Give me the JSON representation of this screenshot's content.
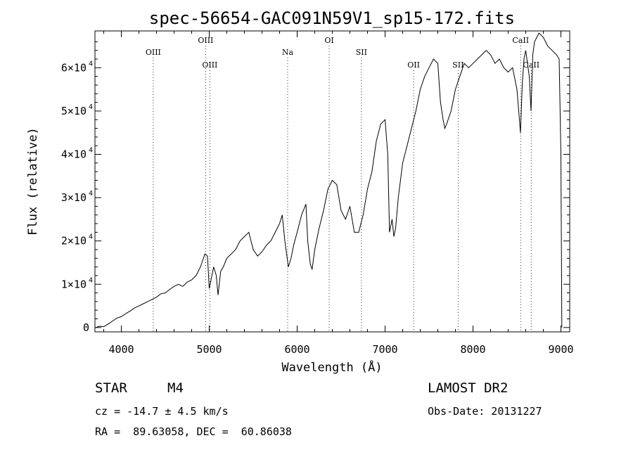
{
  "chart_data": {
    "type": "line",
    "title": "spec-56654-GAC091N59V1_sp15-172.fits",
    "xlabel": "Wavelength (Å)",
    "ylabel": "Flux (relative)",
    "xlim": [
      3700,
      9100
    ],
    "ylim": [
      -1000,
      68500
    ],
    "xticks": [
      4000,
      5000,
      6000,
      7000,
      8000,
      9000
    ],
    "yticks": [
      {
        "value": 0,
        "label": "0",
        "exp": ""
      },
      {
        "value": 10000,
        "label": "1×10",
        "exp": "4"
      },
      {
        "value": 20000,
        "label": "2×10",
        "exp": "4"
      },
      {
        "value": 30000,
        "label": "3×10",
        "exp": "4"
      },
      {
        "value": 40000,
        "label": "4×10",
        "exp": "4"
      },
      {
        "value": 50000,
        "label": "5×10",
        "exp": "4"
      },
      {
        "value": 60000,
        "label": "6×10",
        "exp": "4"
      }
    ],
    "grid": false,
    "series": [
      {
        "x": [
          3710,
          3750,
          3800,
          3850,
          3900,
          3950,
          4000,
          4050,
          4100,
          4150,
          4200,
          4250,
          4300,
          4350,
          4400,
          4450,
          4500,
          4550,
          4600,
          4650,
          4700,
          4750,
          4800,
          4850,
          4900,
          4950,
          4980,
          5000,
          5020,
          5050,
          5080,
          5100,
          5130,
          5160,
          5200,
          5250,
          5300,
          5350,
          5400,
          5450,
          5500,
          5550,
          5600,
          5650,
          5700,
          5750,
          5800,
          5830,
          5860,
          5880,
          5900,
          5930,
          5960,
          6000,
          6050,
          6100,
          6120,
          6150,
          6170,
          6200,
          6250,
          6300,
          6350,
          6400,
          6450,
          6500,
          6550,
          6600,
          6650,
          6700,
          6750,
          6800,
          6850,
          6900,
          6950,
          7000,
          7030,
          7050,
          7080,
          7100,
          7120,
          7150,
          7200,
          7250,
          7300,
          7350,
          7400,
          7450,
          7500,
          7550,
          7600,
          7630,
          7660,
          7680,
          7700,
          7750,
          7800,
          7850,
          7900,
          7950,
          8000,
          8050,
          8100,
          8150,
          8200,
          8250,
          8300,
          8350,
          8400,
          8450,
          8500,
          8540,
          8560,
          8580,
          8600,
          8640,
          8660,
          8680,
          8700,
          8750,
          8800,
          8850,
          8900,
          8950,
          8980,
          9000,
          9010
        ],
        "y": [
          0,
          300,
          200,
          800,
          1500,
          2200,
          2500,
          3200,
          3800,
          4500,
          5000,
          5500,
          6000,
          6500,
          7000,
          7800,
          8000,
          8800,
          9500,
          10000,
          9500,
          10500,
          11000,
          12000,
          14000,
          17000,
          16500,
          9000,
          11000,
          14000,
          12000,
          7500,
          13000,
          14000,
          16000,
          17000,
          18000,
          20000,
          21000,
          22000,
          18000,
          16500,
          17500,
          19000,
          20000,
          22000,
          24000,
          26000,
          20000,
          17000,
          14000,
          16000,
          19000,
          22000,
          26000,
          28500,
          20000,
          14500,
          13500,
          18000,
          23000,
          27000,
          32000,
          34000,
          33000,
          27000,
          25000,
          28000,
          22000,
          22000,
          26000,
          32000,
          36000,
          43000,
          47000,
          48000,
          40000,
          22000,
          25000,
          21000,
          23000,
          30000,
          38000,
          42000,
          46000,
          50000,
          55000,
          58000,
          60000,
          62000,
          61000,
          52000,
          48000,
          46000,
          47000,
          50000,
          55000,
          58000,
          61000,
          60000,
          61000,
          62000,
          63000,
          64000,
          63000,
          61000,
          62000,
          60000,
          59000,
          60000,
          55000,
          45000,
          56000,
          62000,
          64000,
          58000,
          50000,
          63000,
          66000,
          68000,
          67000,
          65000,
          64000,
          63000,
          62000,
          40000,
          0
        ],
        "label_every": 0
      }
    ],
    "annotations": [
      {
        "label": "OIII",
        "x": 4363,
        "row": "upper"
      },
      {
        "label": "OIII",
        "x": 4959,
        "row": "top"
      },
      {
        "label": "OIII",
        "x": 5007,
        "row": "lower"
      },
      {
        "label": "Na",
        "x": 5892,
        "row": "upper"
      },
      {
        "label": "OI",
        "x": 6364,
        "row": "top"
      },
      {
        "label": "SII",
        "x": 6731,
        "row": "upper"
      },
      {
        "label": "OII",
        "x": 7325,
        "row": "lower"
      },
      {
        "label": "SII",
        "x": 7831,
        "row": "lower"
      },
      {
        "label": "CaII",
        "x": 8542,
        "row": "top"
      },
      {
        "label": "CaII",
        "x": 8662,
        "row": "lower"
      }
    ]
  },
  "info": {
    "object_class": "STAR",
    "subclass": "M4",
    "survey": "LAMOST DR2",
    "cz": "cz = -14.7 ± 4.5 km/s",
    "obs_date": "Obs-Date: 20131227",
    "coords": "RA =  89.63058, DEC =  60.86038"
  }
}
